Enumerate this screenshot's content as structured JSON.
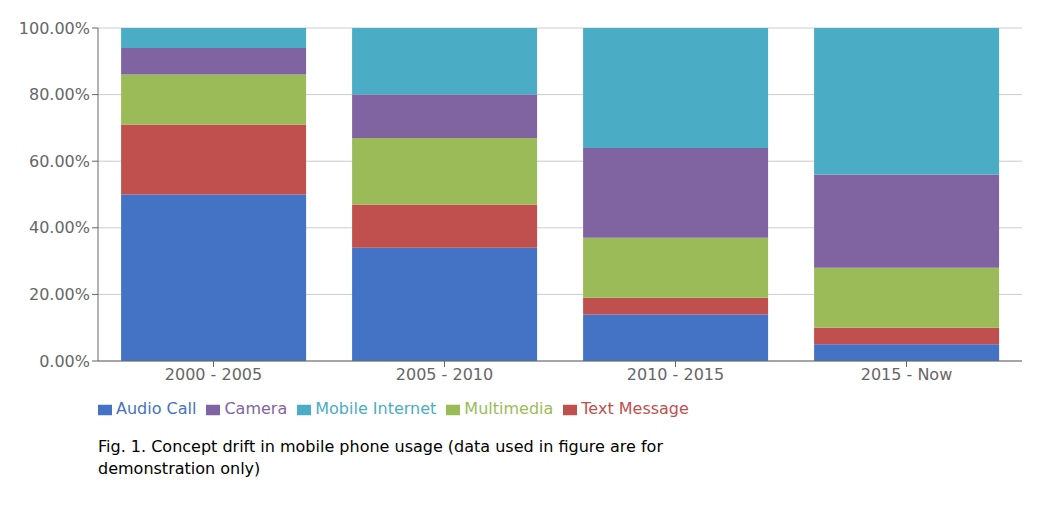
{
  "chart_data": {
    "type": "bar",
    "stacked": true,
    "grid": true,
    "legend": "bottom",
    "categories": [
      "2000 - 2005",
      "2005 - 2010",
      "2010 - 2015",
      "2015 - Now"
    ],
    "series": [
      {
        "name": "Audio Call",
        "color": "#4472C4",
        "values": [
          50,
          34,
          14,
          5
        ]
      },
      {
        "name": "Text Message",
        "color": "#C0504D",
        "values": [
          21,
          13,
          5,
          5
        ]
      },
      {
        "name": "Multimedia",
        "color": "#9BBB59",
        "values": [
          15,
          20,
          18,
          18
        ]
      },
      {
        "name": "Camera",
        "color": "#8064A2",
        "values": [
          8,
          13,
          27,
          28
        ]
      },
      {
        "name": "Mobile Internet",
        "color": "#4BACC6",
        "values": [
          6,
          20,
          36,
          44
        ]
      }
    ],
    "ylim": [
      0,
      100
    ],
    "yticks": [
      {
        "value": 0,
        "label": "0.00%"
      },
      {
        "value": 20,
        "label": "20.00%"
      },
      {
        "value": 40,
        "label": "40.00%"
      },
      {
        "value": 60,
        "label": "60.00%"
      },
      {
        "value": 80,
        "label": "80.00%"
      },
      {
        "value": 100,
        "label": "100.00%"
      }
    ],
    "annotations": [
      "Fig. 1. Concept drift in mobile phone usage (data used in figure are for",
      "demonstration only)"
    ]
  }
}
